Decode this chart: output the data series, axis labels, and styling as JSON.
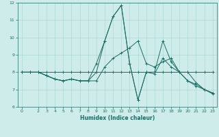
{
  "xlabel": "Humidex (Indice chaleur)",
  "background_color": "#ceecea",
  "grid_color": "#aed8d5",
  "line_color": "#1e6b65",
  "xlim": [
    -0.5,
    23.5
  ],
  "ylim": [
    6,
    12
  ],
  "yticks": [
    6,
    7,
    8,
    9,
    10,
    11,
    12
  ],
  "xticks": [
    0,
    2,
    3,
    4,
    5,
    6,
    7,
    8,
    9,
    10,
    11,
    12,
    13,
    14,
    15,
    16,
    17,
    18,
    19,
    20,
    21,
    22,
    23
  ],
  "series": [
    {
      "x": [
        0,
        1,
        2,
        3,
        4,
        5,
        6,
        7,
        8,
        9,
        10,
        11,
        12,
        13,
        14,
        15,
        16,
        17,
        18,
        19,
        20,
        21,
        22,
        23
      ],
      "y": [
        8.0,
        8.0,
        8.0,
        8.0,
        8.0,
        8.0,
        8.0,
        8.0,
        8.0,
        8.0,
        8.0,
        8.0,
        8.0,
        8.0,
        8.0,
        8.0,
        8.0,
        8.0,
        8.0,
        8.0,
        8.0,
        8.0,
        8.0,
        8.0
      ]
    },
    {
      "x": [
        0,
        1,
        2,
        3,
        4,
        5,
        6,
        7,
        8,
        9,
        10,
        11,
        12,
        13,
        14,
        15,
        16,
        17,
        18,
        19,
        20,
        21,
        22,
        23
      ],
      "y": [
        8.0,
        8.0,
        8.0,
        7.8,
        7.6,
        7.5,
        7.6,
        7.5,
        7.5,
        7.5,
        8.3,
        8.8,
        9.1,
        9.4,
        9.8,
        8.5,
        8.3,
        8.6,
        8.8,
        8.0,
        7.5,
        7.2,
        7.0,
        6.8
      ]
    },
    {
      "x": [
        0,
        1,
        2,
        3,
        4,
        5,
        6,
        7,
        8,
        9,
        10,
        11,
        12,
        13,
        14,
        15,
        16,
        17,
        18,
        19,
        20,
        21,
        22,
        23
      ],
      "y": [
        8.0,
        8.0,
        8.0,
        7.8,
        7.6,
        7.5,
        7.6,
        7.5,
        7.5,
        8.0,
        9.8,
        11.2,
        11.85,
        8.5,
        6.4,
        8.0,
        8.0,
        9.8,
        8.6,
        8.0,
        8.0,
        7.4,
        7.0,
        6.75
      ]
    },
    {
      "x": [
        0,
        1,
        2,
        3,
        4,
        5,
        6,
        7,
        8,
        9,
        10,
        11,
        12,
        13,
        14,
        15,
        16,
        17,
        18,
        19,
        20,
        21,
        22,
        23
      ],
      "y": [
        8.0,
        8.0,
        8.0,
        7.8,
        7.6,
        7.5,
        7.6,
        7.5,
        7.5,
        8.5,
        9.8,
        11.2,
        11.85,
        8.5,
        6.4,
        8.0,
        7.9,
        8.8,
        8.3,
        8.0,
        7.5,
        7.3,
        7.0,
        6.8
      ]
    }
  ]
}
